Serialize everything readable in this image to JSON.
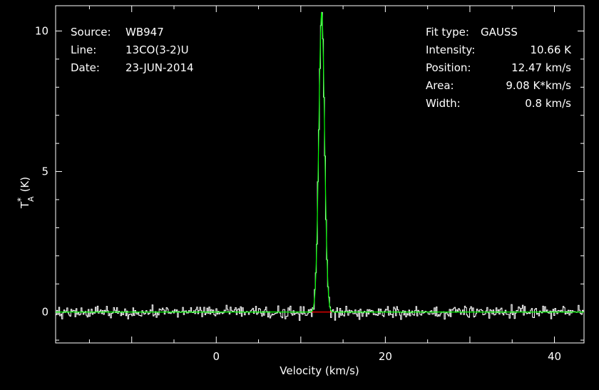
{
  "chart_data": {
    "type": "line",
    "title": "",
    "xlabel": "Velocity (km/s)",
    "ylabel": "T",
    "ylabel_parts": {
      "star": "*",
      "sub": "A",
      "unit": "(K)"
    },
    "xlim": [
      -19,
      43.5
    ],
    "ylim": [
      -1.1,
      10.9
    ],
    "x_ticks": [
      0,
      20,
      40
    ],
    "y_ticks": [
      0,
      5,
      10
    ],
    "info_left": [
      {
        "key": "Source:",
        "value": "WB947"
      },
      {
        "key": "Line:",
        "value": "13CO(3-2)U"
      },
      {
        "key": "Date:",
        "value": "23-JUN-2014"
      }
    ],
    "info_right": [
      {
        "key": "Fit type:",
        "value": "GAUSS"
      },
      {
        "key": "Intensity:",
        "value": "10.66 K"
      },
      {
        "key": "Position:",
        "value": "12.47 km/s"
      },
      {
        "key": "Area:",
        "value": "9.08 K*km/s"
      },
      {
        "key": "Width:",
        "value": "0.8 km/s"
      }
    ],
    "fit": {
      "amplitude": 10.66,
      "center": 12.47,
      "fwhm": 0.8
    },
    "fit_window": [
      11.3,
      13.6
    ],
    "series": [
      {
        "role": "spectrum",
        "color": "#ffffff",
        "noise_rms": 0.15,
        "channel_width": 0.12
      },
      {
        "role": "gaussian-fit",
        "color": "#00ff00"
      },
      {
        "role": "baseline",
        "color": "#ff0000"
      }
    ]
  }
}
